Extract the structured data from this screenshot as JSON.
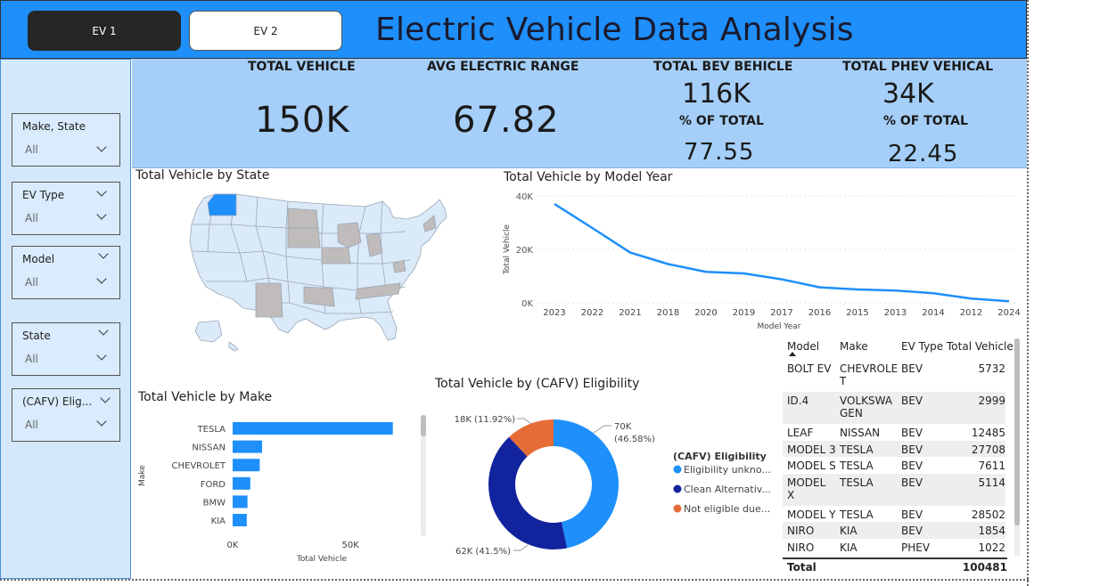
{
  "header": {
    "tabs": [
      {
        "label": "EV 1"
      },
      {
        "label": "EV 2"
      }
    ],
    "title": "Electric Vehicle Data Analysis",
    "colors": {
      "header_bg": "#1e8ffb",
      "active_tab": "#262626",
      "kpi_band": "#a5cff8",
      "sidebar": "#d3e8fb"
    }
  },
  "sidebar": {
    "slicers": [
      {
        "label": "Make, State",
        "value": "All"
      },
      {
        "label": "EV Type",
        "value": "All"
      },
      {
        "label": "Model",
        "value": "All"
      },
      {
        "label": "State",
        "value": "All"
      },
      {
        "label": "(CAFV) Elig...",
        "value": "All"
      }
    ]
  },
  "kpis": {
    "total_vehicle": {
      "title": "TOTAL VEHICLE",
      "value": "150K"
    },
    "avg_range": {
      "title": "AVG ELECTRIC RANGE",
      "value": "67.82"
    },
    "bev": {
      "title": "TOTAL BEV BEHICLE",
      "value": "116K",
      "pct_label": "% OF TOTAL",
      "pct": "77.55"
    },
    "phev": {
      "title": "TOTAL PHEV VEHICAL",
      "value": "34K",
      "pct_label": "% OF TOTAL",
      "pct": "22.45"
    }
  },
  "map": {
    "title": "Total Vehicle by State",
    "highlight_color": "#1e8ffb",
    "base_color": "#dbeaf9",
    "gray_color": "#c0bcbc"
  },
  "chart_data": [
    {
      "type": "line",
      "title": "Total Vehicle by Model Year",
      "xlabel": "Model Year",
      "ylabel": "Total Vehicle",
      "categories": [
        "2023",
        "2022",
        "2021",
        "2018",
        "2020",
        "2019",
        "2017",
        "2016",
        "2015",
        "2013",
        "2014",
        "2012",
        "2024"
      ],
      "values": [
        37000,
        28000,
        18800,
        14500,
        11600,
        11000,
        8800,
        5800,
        5000,
        4600,
        3600,
        1600,
        600
      ],
      "yticks": [
        "0K",
        "20K",
        "40K"
      ],
      "ylim": [
        0,
        40000
      ],
      "color": "#1e8ffb"
    },
    {
      "type": "bar",
      "orientation": "horizontal",
      "title": "Total Vehicle by Make",
      "xlabel": "Total Vehicle",
      "ylabel": "Make",
      "categories": [
        "TESLA",
        "NISSAN",
        "CHEVROLET",
        "FORD",
        "BMW",
        "KIA"
      ],
      "values": [
        68000,
        12500,
        11500,
        7500,
        6300,
        6000
      ],
      "xticks": [
        "0K",
        "50K"
      ],
      "xlim": [
        0,
        70000
      ],
      "color": "#1e8ffb"
    },
    {
      "type": "pie",
      "donut": true,
      "title": "Total Vehicle by (CAFV) Eligibility",
      "legend_title": "(CAFV) Eligibility",
      "slices": [
        {
          "label": "Eligibility unkno...",
          "value": 70000,
          "data_label": "70K",
          "pct_label": "(46.58%)",
          "color": "#1e8ffb"
        },
        {
          "label": "Clean Alternativ...",
          "value": 62000,
          "data_label": "62K (41.5%)",
          "color": "#12239e"
        },
        {
          "label": "Not eligible due...",
          "value": 18000,
          "data_label": "18K (11.92%)",
          "color": "#e66c37"
        }
      ]
    },
    {
      "type": "table",
      "columns": [
        "Model",
        "Make",
        "EV Type",
        "Total Vehicle"
      ],
      "rows": [
        {
          "model": "BOLT EV",
          "make": "CHEVROLE\nT",
          "type": "BEV",
          "total": "5732"
        },
        {
          "model": "ID.4",
          "make": "VOLKSWA\nGEN",
          "type": "BEV",
          "total": "2999"
        },
        {
          "model": "LEAF",
          "make": "NISSAN",
          "type": "BEV",
          "total": "12485"
        },
        {
          "model": "MODEL 3",
          "make": "TESLA",
          "type": "BEV",
          "total": "27708"
        },
        {
          "model": "MODEL S",
          "make": "TESLA",
          "type": "BEV",
          "total": "7611"
        },
        {
          "model": "MODEL\nX",
          "make": "TESLA",
          "type": "BEV",
          "total": "5114"
        },
        {
          "model": "MODEL Y",
          "make": "TESLA",
          "type": "BEV",
          "total": "28502"
        },
        {
          "model": "NIRO",
          "make": "KIA",
          "type": "BEV",
          "total": "1854"
        },
        {
          "model": "NIRO",
          "make": "KIA",
          "type": "PHEV",
          "total": "1022"
        }
      ],
      "total_label": "Total",
      "total_value": "100481"
    }
  ]
}
